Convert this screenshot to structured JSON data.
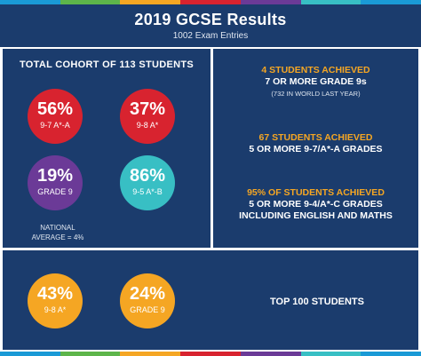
{
  "header": {
    "title": "2019 GCSE Results",
    "subtitle": "1002 Exam Entries"
  },
  "stripe_colors": [
    "#1a9ad6",
    "#5db54a",
    "#f5a623",
    "#d8232f",
    "#6b3a97",
    "#38bfc4",
    "#1a9ad6"
  ],
  "cohort": {
    "title": "TOTAL COHORT OF 113 STUDENTS",
    "stats": [
      {
        "value": "56%",
        "label": "9-7  A*-A",
        "color": "#d8232f"
      },
      {
        "value": "37%",
        "label": "9-8  A*",
        "color": "#d8232f"
      },
      {
        "value": "19%",
        "label": "GRADE 9",
        "color": "#6b3a97"
      },
      {
        "value": "86%",
        "label": "9-5  A*-B",
        "color": "#38bfc4"
      }
    ],
    "note_line1": "NATIONAL",
    "note_line2": "AVERAGE = 4%"
  },
  "achievements": [
    {
      "highlight": "4 STUDENTS ACHIEVED",
      "text": "7 OR MORE GRADE 9s",
      "sub": "(732 IN WORLD LAST YEAR)"
    },
    {
      "highlight": "67 STUDENTS ACHIEVED",
      "text": "5 OR MORE 9-7/A*-A GRADES"
    },
    {
      "highlight": "95% OF STUDENTS ACHIEVED",
      "text": "5 OR MORE 9-4/A*-C GRADES",
      "text2": "INCLUDING ENGLISH AND MATHS"
    }
  ],
  "top100": {
    "stats": [
      {
        "value": "43%",
        "label": "9-8  A*",
        "color": "#f5a623"
      },
      {
        "value": "24%",
        "label": "GRADE 9",
        "color": "#f5a623"
      }
    ],
    "title": "TOP 100 STUDENTS"
  }
}
